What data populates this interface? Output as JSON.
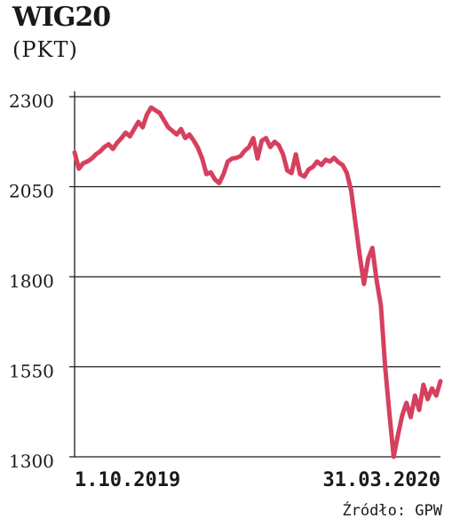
{
  "chart_data": {
    "type": "line",
    "title": "WIG20",
    "subtitle": "(PKT)",
    "source": "Źródło: GPW",
    "ylim": [
      1300,
      2300
    ],
    "y_ticks": [
      2300,
      2050,
      1800,
      1550,
      1300
    ],
    "y_tick_labels": [
      "2300",
      "2050",
      "1800",
      "1550",
      "1300"
    ],
    "x_tick_labels": [
      "1.10.2019",
      "31.03.2020"
    ],
    "x_range": [
      "2019-10-01",
      "2020-03-31"
    ],
    "grid": true,
    "color": "#d6405e",
    "series": [
      {
        "values": [
          2145,
          2100,
          2115,
          2120,
          2128,
          2140,
          2148,
          2160,
          2168,
          2155,
          2172,
          2185,
          2200,
          2190,
          2210,
          2230,
          2215,
          2250,
          2270,
          2262,
          2255,
          2235,
          2215,
          2205,
          2195,
          2210,
          2185,
          2195,
          2178,
          2158,
          2128,
          2085,
          2090,
          2070,
          2060,
          2085,
          2120,
          2128,
          2130,
          2135,
          2150,
          2160,
          2185,
          2128,
          2178,
          2185,
          2160,
          2175,
          2165,
          2140,
          2095,
          2088,
          2140,
          2085,
          2078,
          2098,
          2105,
          2120,
          2110,
          2125,
          2120,
          2130,
          2118,
          2110,
          2088,
          2040,
          1950,
          1860,
          1780,
          1850,
          1880,
          1790,
          1720,
          1550,
          1420,
          1300,
          1360,
          1415,
          1450,
          1410,
          1470,
          1430,
          1500,
          1460,
          1490,
          1470,
          1510
        ]
      }
    ]
  }
}
